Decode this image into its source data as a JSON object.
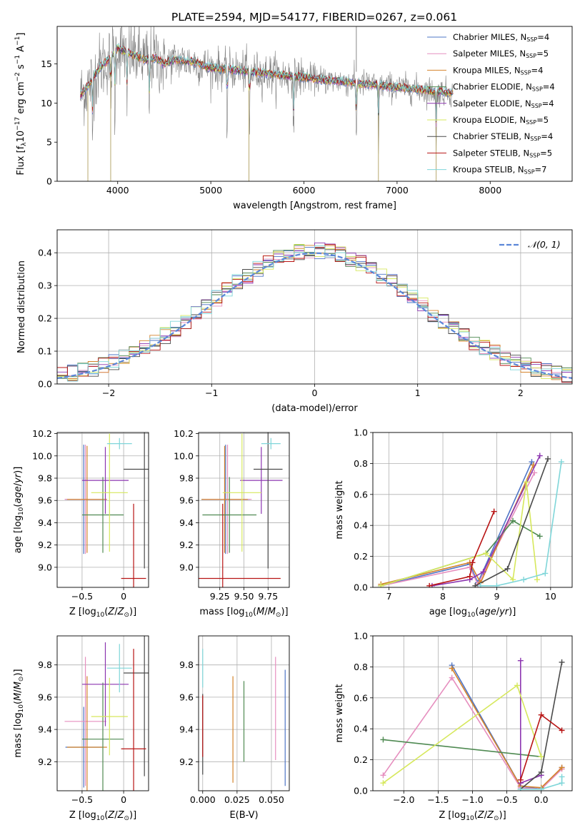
{
  "figure_title": "PLATE=2594, MJD=54177, FIBERID=0267, z=0.061",
  "series": [
    {
      "name": "Chabrier MILES, N_SSP=4",
      "label_main": "Chabrier MILES, N",
      "label_sub": "SSP",
      "label_tail": "=4",
      "color": "#4e74c5"
    },
    {
      "name": "Salpeter MILES, N_SSP=5",
      "label_main": "Salpeter MILES, N",
      "label_sub": "SSP",
      "label_tail": "=5",
      "color": "#e68fbf"
    },
    {
      "name": "Kroupa MILES, N_SSP=4",
      "label_main": "Kroupa MILES, N",
      "label_sub": "SSP",
      "label_tail": "=4",
      "color": "#d4832b"
    },
    {
      "name": "Chabrier ELODIE, N_SSP=4",
      "label_main": "Chabrier ELODIE, N",
      "label_sub": "SSP",
      "label_tail": "=4",
      "color": "#4f8a52"
    },
    {
      "name": "Salpeter ELODIE, N_SSP=4",
      "label_main": "Salpeter ELODIE, N",
      "label_sub": "SSP",
      "label_tail": "=4",
      "color": "#8c35b0"
    },
    {
      "name": "Kroupa ELODIE, N_SSP=5",
      "label_main": "Kroupa ELODIE, N",
      "label_sub": "SSP",
      "label_tail": "=5",
      "color": "#d6e85c"
    },
    {
      "name": "Chabrier STELIB, N_SSP=4",
      "label_main": "Chabrier STELIB, N",
      "label_sub": "SSP",
      "label_tail": "=4",
      "color": "#4a4a4a"
    },
    {
      "name": "Salpeter STELIB, N_SSP=5",
      "label_main": "Salpeter STELIB, N",
      "label_sub": "SSP",
      "label_tail": "=5",
      "color": "#b81414"
    },
    {
      "name": "Kroupa STELIB, N_SSP=7",
      "label_main": "Kroupa STELIB, N",
      "label_sub": "SSP",
      "label_tail": "=7",
      "color": "#7fd6d9"
    }
  ],
  "chart_data": [
    {
      "id": "spectrum",
      "type": "line",
      "xlabel": "wavelength [Angstrom, rest frame]",
      "ylabel": "Flux [f_λ 10^-17 erg cm^-2 s^-1 A^-1]",
      "xlim": [
        3350,
        8880
      ],
      "ylim": [
        0,
        19.8
      ],
      "xticks": [
        4000,
        5000,
        6000,
        7000,
        8000
      ],
      "yticks": [
        0,
        5,
        10,
        15
      ],
      "legend": "top-right",
      "data_color": "#808080",
      "model_curve": {
        "wavelength": [
          3600,
          3700,
          3800,
          3900,
          4000,
          4100,
          4200,
          4300,
          4400,
          4500,
          4600,
          4800,
          5000,
          5200,
          5400,
          5600,
          5800,
          6000,
          6200,
          6400,
          6600,
          6800,
          7000,
          7200,
          7400,
          7600
        ],
        "flux": [
          11.0,
          12.5,
          14.5,
          15.5,
          17.0,
          16.5,
          16.0,
          15.5,
          15.8,
          15.0,
          15.5,
          15.3,
          14.5,
          14.3,
          14.0,
          13.8,
          13.5,
          13.3,
          13.0,
          12.8,
          12.5,
          12.3,
          12.0,
          11.8,
          11.5,
          11.3
        ]
      },
      "absorption_lines": [
        3730,
        3925,
        3970,
        4100,
        4340,
        5175,
        5415,
        5890,
        6563,
        6800,
        7420
      ]
    },
    {
      "id": "residuals",
      "type": "histogram",
      "xlabel": "(data-model)/error",
      "ylabel": "Normed distribution",
      "xlim": [
        -2.5,
        2.5
      ],
      "ylim": [
        0,
        0.47
      ],
      "xticks": [
        -2,
        -1,
        0,
        1,
        2
      ],
      "yticks": [
        0.0,
        0.1,
        0.2,
        0.3,
        0.4
      ],
      "grid": true,
      "legend": "top-right",
      "reference": {
        "name": "N(0,1)",
        "label": "𝒩(0, 1)",
        "color": "#5b87d8"
      },
      "bin_width": 0.1
    },
    {
      "id": "age_vs_Z",
      "type": "errorbar",
      "xlabel": "Z [log10(Z/Z⊙)]",
      "ylabel": "age [log10(age/yr)]",
      "xlim": [
        -0.8,
        0.3
      ],
      "ylim": [
        8.82,
        10.21
      ],
      "xticks": [
        -0.5,
        0.0
      ],
      "yticks": [
        9.0,
        9.2,
        9.4,
        9.6,
        9.8,
        10.0,
        10.2
      ],
      "grid": true,
      "points": [
        {
          "series": 0,
          "x": -0.48,
          "y": 9.61,
          "xerr": 0.22,
          "yerr": 0.49
        },
        {
          "series": 1,
          "x": -0.46,
          "y": 9.61,
          "xerr": 0.25,
          "yerr": 0.49
        },
        {
          "series": 2,
          "x": -0.44,
          "y": 9.61,
          "xerr": 0.24,
          "yerr": 0.48
        },
        {
          "series": 3,
          "x": -0.25,
          "y": 9.47,
          "xerr": 0.25,
          "yerr": 0.34
        },
        {
          "series": 4,
          "x": -0.22,
          "y": 9.78,
          "xerr": 0.28,
          "yerr": 0.3
        },
        {
          "series": 5,
          "x": -0.17,
          "y": 9.67,
          "xerr": 0.22,
          "yerr": 0.53
        },
        {
          "series": 6,
          "x": 0.25,
          "y": 9.88,
          "xerr": 0.25,
          "yerr": 0.89
        },
        {
          "series": 7,
          "x": 0.12,
          "y": 8.9,
          "xerr": 0.15,
          "yerr": 0.67
        },
        {
          "series": 8,
          "x": -0.05,
          "y": 10.11,
          "xerr": 0.15,
          "yerr": 0.05
        }
      ]
    },
    {
      "id": "age_vs_mass",
      "type": "errorbar",
      "xlabel": "mass [log10(M/M⊙)]",
      "ylabel": "",
      "xlim": [
        9.03,
        9.97
      ],
      "ylim": [
        8.82,
        10.21
      ],
      "xticks": [
        9.25,
        9.5,
        9.75
      ],
      "yticks": [
        9.0,
        9.2,
        9.4,
        9.6,
        9.8,
        10.0,
        10.2
      ],
      "grid": true,
      "points": [
        {
          "series": 0,
          "x": 9.31,
          "y": 9.61,
          "xerr": 0.25,
          "yerr": 0.49
        },
        {
          "series": 1,
          "x": 9.33,
          "y": 9.61,
          "xerr": 0.25,
          "yerr": 0.49
        },
        {
          "series": 2,
          "x": 9.3,
          "y": 9.61,
          "xerr": 0.24,
          "yerr": 0.48
        },
        {
          "series": 3,
          "x": 9.35,
          "y": 9.47,
          "xerr": 0.28,
          "yerr": 0.34
        },
        {
          "series": 4,
          "x": 9.68,
          "y": 9.78,
          "xerr": 0.22,
          "yerr": 0.3
        },
        {
          "series": 5,
          "x": 9.48,
          "y": 9.67,
          "xerr": 0.2,
          "yerr": 0.53
        },
        {
          "series": 6,
          "x": 9.75,
          "y": 9.88,
          "xerr": 0.15,
          "yerr": 0.89
        },
        {
          "series": 7,
          "x": 9.28,
          "y": 8.9,
          "xerr": 0.6,
          "yerr": 0.67
        },
        {
          "series": 8,
          "x": 9.78,
          "y": 10.11,
          "xerr": 0.1,
          "yerr": 0.05
        }
      ]
    },
    {
      "id": "massweight_vs_age",
      "type": "line",
      "xlabel": "age [log10(age/yr)]",
      "ylabel": "mass weight",
      "xlim": [
        6.7,
        10.4
      ],
      "ylim": [
        0,
        1
      ],
      "xticks": [
        7,
        8,
        9,
        10
      ],
      "yticks": [
        0.0,
        0.2,
        0.4,
        0.6,
        0.8,
        1.0
      ],
      "grid": true,
      "lines": [
        {
          "series": 0,
          "x": [
            6.85,
            8.5,
            8.65,
            9.65
          ],
          "y": [
            0.01,
            0.15,
            0.03,
            0.81
          ]
        },
        {
          "series": 1,
          "x": [
            6.85,
            8.5,
            8.65,
            9.7
          ],
          "y": [
            0.01,
            0.13,
            0.02,
            0.74
          ]
        },
        {
          "series": 2,
          "x": [
            6.85,
            8.5,
            8.7,
            9.68
          ],
          "y": [
            0.02,
            0.16,
            0.03,
            0.79
          ]
        },
        {
          "series": 3,
          "x": [
            6.85,
            8.8,
            9.3,
            9.8
          ],
          "y": [
            0.01,
            0.22,
            0.43,
            0.33
          ]
        },
        {
          "series": 4,
          "x": [
            7.8,
            8.5,
            8.75,
            9.8
          ],
          "y": [
            0.01,
            0.05,
            0.1,
            0.85
          ]
        },
        {
          "series": 5,
          "x": [
            6.85,
            8.8,
            9.3,
            9.55,
            9.75
          ],
          "y": [
            0.01,
            0.22,
            0.05,
            0.68,
            0.05
          ]
        },
        {
          "series": 6,
          "x": [
            8.6,
            9.2,
            9.95
          ],
          "y": [
            0.01,
            0.12,
            0.83
          ]
        },
        {
          "series": 7,
          "x": [
            7.75,
            8.5,
            8.55,
            8.95
          ],
          "y": [
            0.01,
            0.07,
            0.16,
            0.49
          ]
        },
        {
          "series": 8,
          "x": [
            8.7,
            9.0,
            9.5,
            9.9,
            10.2
          ],
          "y": [
            0.01,
            0.01,
            0.05,
            0.09,
            0.81
          ]
        }
      ]
    },
    {
      "id": "mass_vs_Z",
      "type": "errorbar",
      "xlabel": "Z [log10(Z/Z⊙)]",
      "ylabel": "mass [log10(M/M⊙)]",
      "xlim": [
        -0.8,
        0.3
      ],
      "ylim": [
        9.02,
        9.98
      ],
      "xticks": [
        -0.5,
        0.0
      ],
      "yticks": [
        9.2,
        9.4,
        9.6,
        9.8
      ],
      "grid": true,
      "points": [
        {
          "series": 0,
          "x": -0.48,
          "y": 9.29,
          "xerr": 0.22,
          "yerr": 0.25
        },
        {
          "series": 1,
          "x": -0.46,
          "y": 9.45,
          "xerr": 0.25,
          "yerr": 0.4
        },
        {
          "series": 2,
          "x": -0.44,
          "y": 9.29,
          "xerr": 0.24,
          "yerr": 0.44
        },
        {
          "series": 3,
          "x": -0.25,
          "y": 9.34,
          "xerr": 0.25,
          "yerr": 0.35
        },
        {
          "series": 4,
          "x": -0.22,
          "y": 9.68,
          "xerr": 0.28,
          "yerr": 0.26
        },
        {
          "series": 5,
          "x": -0.17,
          "y": 9.48,
          "xerr": 0.22,
          "yerr": 0.24
        },
        {
          "series": 6,
          "x": 0.25,
          "y": 9.75,
          "xerr": 0.25,
          "yerr": 0.64
        },
        {
          "series": 7,
          "x": 0.12,
          "y": 9.28,
          "xerr": 0.15,
          "yerr": 0.62
        },
        {
          "series": 8,
          "x": -0.05,
          "y": 9.78,
          "xerr": 0.15,
          "yerr": 0.15
        }
      ]
    },
    {
      "id": "mass_vs_ebv",
      "type": "errorbar",
      "xlabel": "E(B-V)",
      "ylabel": "",
      "xlim": [
        -0.003,
        0.063
      ],
      "ylim": [
        9.02,
        9.98
      ],
      "xticks": [
        0.0,
        0.025,
        0.05
      ],
      "xtick_labels": [
        "0.000",
        "0.025",
        "0.050"
      ],
      "yticks": [
        9.2,
        9.4,
        9.6,
        9.8
      ],
      "grid": true,
      "points": [
        {
          "series": 0,
          "x": 0.06,
          "y": 9.41,
          "xerr": 0,
          "yerr": 0.36
        },
        {
          "series": 1,
          "x": 0.053,
          "y": 9.53,
          "xerr": 0,
          "yerr": 0.32
        },
        {
          "series": 2,
          "x": 0.022,
          "y": 9.4,
          "xerr": 0,
          "yerr": 0.33
        },
        {
          "series": 3,
          "x": 0.03,
          "y": 9.45,
          "xerr": 0,
          "yerr": 0.25
        },
        {
          "series": 6,
          "x": 0.0,
          "y": 9.37,
          "xerr": 0,
          "yerr": 0.25
        },
        {
          "series": 7,
          "x": 0.0,
          "y": 9.42,
          "xerr": 0,
          "yerr": 0.19
        },
        {
          "series": 8,
          "x": 0.0,
          "y": 9.78,
          "xerr": 0,
          "yerr": 0.12
        }
      ]
    },
    {
      "id": "massweight_vs_Z",
      "type": "line",
      "xlabel": "Z [log10(Z/Z⊙)]",
      "ylabel": "mass weight",
      "xlim": [
        -2.45,
        0.45
      ],
      "ylim": [
        0,
        1
      ],
      "xticks": [
        -2.0,
        -1.5,
        -1.0,
        -0.5,
        0.0
      ],
      "yticks": [
        0.0,
        0.2,
        0.4,
        0.6,
        0.8,
        1.0
      ],
      "grid": true,
      "lines": [
        {
          "series": 0,
          "x": [
            -1.3,
            -0.3,
            0.0,
            0.3
          ],
          "y": [
            0.81,
            0.03,
            0.01,
            0.15
          ]
        },
        {
          "series": 1,
          "x": [
            -2.3,
            -1.3,
            -0.3,
            0.0,
            0.3
          ],
          "y": [
            0.1,
            0.73,
            0.02,
            0.01,
            0.14
          ]
        },
        {
          "series": 2,
          "x": [
            -1.3,
            -0.3,
            0.0,
            0.3
          ],
          "y": [
            0.79,
            0.03,
            0.02,
            0.15
          ]
        },
        {
          "series": 3,
          "x": [
            -2.3,
            0.0
          ],
          "y": [
            0.33,
            0.22
          ]
        },
        {
          "series": 4,
          "x": [
            -0.3,
            -0.3,
            0.0
          ],
          "y": [
            0.84,
            0.05,
            0.1
          ]
        },
        {
          "series": 5,
          "x": [
            -2.3,
            -0.35,
            0.0
          ],
          "y": [
            0.05,
            0.68,
            0.22
          ]
        },
        {
          "series": 6,
          "x": [
            -0.3,
            0.0,
            0.3
          ],
          "y": [
            0.01,
            0.12,
            0.83
          ]
        },
        {
          "series": 7,
          "x": [
            -0.3,
            0.0,
            0.3
          ],
          "y": [
            0.07,
            0.49,
            0.39
          ]
        },
        {
          "series": 8,
          "x": [
            -0.3,
            0.0,
            0.3,
            0.3
          ],
          "y": [
            0.01,
            0.01,
            0.05,
            0.09
          ]
        }
      ]
    }
  ]
}
